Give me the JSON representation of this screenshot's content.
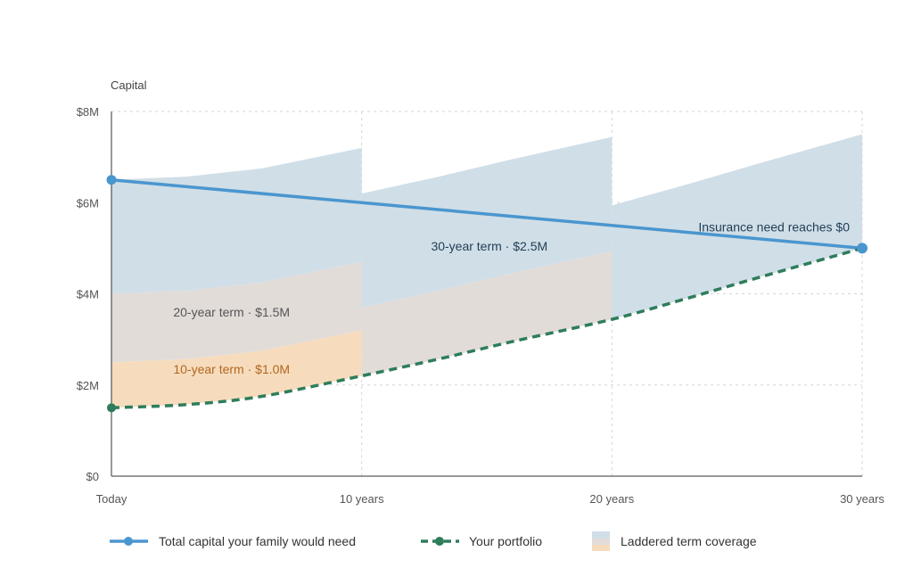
{
  "chart_data": {
    "type": "area",
    "ylabel": "Capital",
    "x_categories": [
      "Today",
      "10 years",
      "20 years",
      "30 years"
    ],
    "xlim": [
      0,
      30
    ],
    "ylim": [
      0,
      8000000
    ],
    "y_ticks": [
      {
        "value": 0,
        "label": "$0"
      },
      {
        "value": 2000000,
        "label": "$2M"
      },
      {
        "value": 4000000,
        "label": "$4M"
      },
      {
        "value": 6000000,
        "label": "$6M"
      },
      {
        "value": 8000000,
        "label": "$8M"
      }
    ],
    "grid": true,
    "legend_position": "bottom",
    "series": [
      {
        "name": "Total capital your family would need",
        "style": "solid-line",
        "color": "#4a96cf",
        "points": [
          [
            0,
            6500000
          ],
          [
            30,
            5000000
          ]
        ]
      },
      {
        "name": "Your portfolio",
        "style": "dashed-line",
        "color": "#2e7d5b",
        "points": [
          [
            0,
            1500000
          ],
          [
            3,
            1570000
          ],
          [
            6,
            1750000
          ],
          [
            10,
            2200000
          ],
          [
            13,
            2560000
          ],
          [
            16,
            2950000
          ],
          [
            20,
            3440000
          ],
          [
            23,
            3900000
          ],
          [
            26,
            4380000
          ],
          [
            30,
            5000000
          ]
        ]
      }
    ],
    "coverage_legend": "Laddered term coverage",
    "coverage_bands": [
      {
        "label": "10-year term · $1.0M",
        "amount": 1000000,
        "term_years": 10,
        "color": "#f6dcbd",
        "label_color": "#b3661e"
      },
      {
        "label": "20-year term · $1.5M",
        "amount": 1500000,
        "term_years": 20,
        "color": "#e2dcd9",
        "label_color": "#555555"
      },
      {
        "label": "30-year term · $2.5M",
        "amount": 2500000,
        "term_years": 30,
        "color": "#d0dee7",
        "label_color": "#1f3d56"
      }
    ],
    "annotations": [
      {
        "text": "Insurance need reaches $0",
        "x": 30,
        "y": 5000000
      }
    ]
  }
}
